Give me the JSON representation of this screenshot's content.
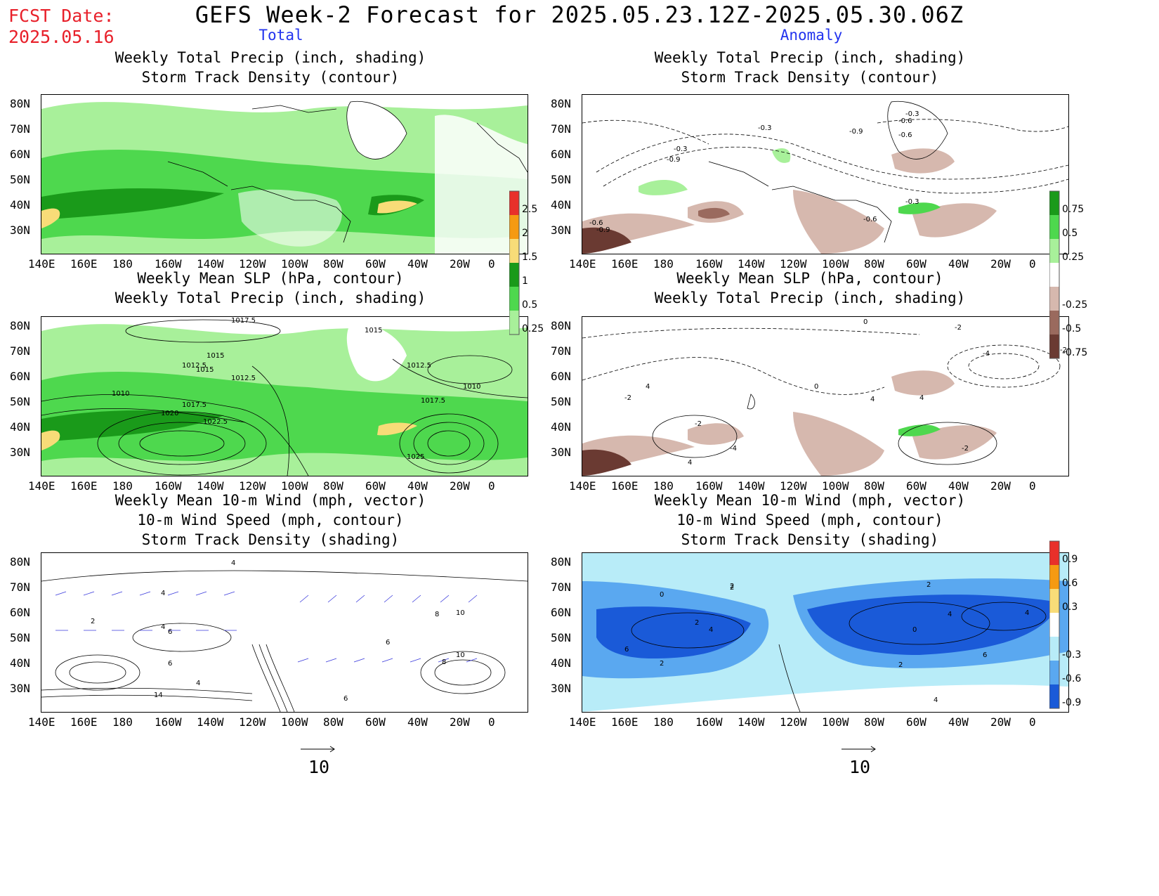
{
  "header": {
    "fcst_label": "FCST Date:",
    "fcst_date": "2025.05.16",
    "title": "GEFS Week-2 Forecast for 2025.05.23.12Z-2025.05.30.06Z",
    "col_total": "Total",
    "col_anomaly": "Anomaly"
  },
  "panels": {
    "p1": {
      "line1": "Weekly Total Precip (inch, shading)",
      "line2": "Storm Track Density (contour)",
      "line3": ""
    },
    "p2": {
      "line1": "Weekly Total Precip (inch, shading)",
      "line2": "Storm Track Density (contour)",
      "line3": ""
    },
    "p3": {
      "line1": "Weekly Mean SLP (hPa, contour)",
      "line2": "Weekly Total Precip (inch, shading)",
      "line3": ""
    },
    "p4": {
      "line1": "Weekly Mean SLP (hPa, contour)",
      "line2": "Weekly Total Precip (inch, shading)",
      "line3": ""
    },
    "p5": {
      "line1": "Weekly Mean 10-m Wind (mph, vector)",
      "line2": "10-m Wind Speed (mph, contour)",
      "line3": "Storm Track Density (shading)"
    },
    "p6": {
      "line1": "Weekly Mean 10-m Wind (mph, vector)",
      "line2": "10-m Wind Speed (mph, contour)",
      "line3": "Storm Track Density (shading)"
    }
  },
  "axes": {
    "lat_labels": [
      "80N",
      "70N",
      "60N",
      "50N",
      "40N",
      "30N"
    ],
    "lon_labels": [
      "140E",
      "160E",
      "180",
      "160W",
      "140W",
      "120W",
      "100W",
      "80W",
      "60W",
      "40W",
      "20W",
      "0"
    ]
  },
  "colorbars": {
    "total_precip": {
      "labels": [
        "2.5",
        "2",
        "1.5",
        "1",
        "0.5",
        "0.25"
      ],
      "colors": [
        "#e8302a",
        "#f59a12",
        "#f8dc78",
        "#1a9a1a",
        "#4ed84e",
        "#a8f09a"
      ]
    },
    "anomaly_precip": {
      "labels": [
        "0.75",
        "0.5",
        "0.25",
        "-0.25",
        "-0.5",
        "-0.75"
      ],
      "colors": [
        "#1a9a1a",
        "#4ed84e",
        "#a8f09a",
        "#ffffff",
        "#d6b8ae",
        "#9a6a5e",
        "#6a3a32"
      ]
    },
    "storm_track": {
      "labels": [
        "0.9",
        "0.6",
        "0.3",
        "-0.3",
        "-0.6",
        "-0.9"
      ],
      "colors": [
        "#e8302a",
        "#f59a12",
        "#f8dc78",
        "#ffffff",
        "#b8ecf8",
        "#5aa8f0",
        "#1a5ad8"
      ]
    }
  },
  "contour_labels": {
    "p2": [
      "-0.3",
      "-0.6",
      "-0.9",
      "-0.3",
      "-0.6",
      "-0.9",
      "-0.3",
      "-0.6",
      "-0.9",
      "-0.6",
      "-0.3"
    ],
    "p3": [
      "1017.5",
      "1015",
      "1015",
      "1012.5",
      "1015",
      "1012.5",
      "1012.5",
      "1010",
      "1017.5",
      "1020",
      "1022.5",
      "1010",
      "1017.5",
      "1025"
    ],
    "p4": [
      "0",
      "-2",
      "-4",
      "4",
      "-2",
      "0",
      "4",
      "-2",
      "-4",
      "4",
      "-2",
      "4",
      "-2"
    ],
    "p5": [
      "4",
      "4",
      "2",
      "4",
      "6",
      "6",
      "4",
      "8",
      "10",
      "8",
      "10",
      "6",
      "6",
      "14"
    ],
    "p6": [
      "2",
      "0",
      "2",
      "4",
      "6",
      "2",
      "2",
      "0",
      "4",
      "4",
      "6",
      "2",
      "4",
      "2"
    ]
  },
  "vector_scale": {
    "left": "10",
    "right": "10"
  }
}
